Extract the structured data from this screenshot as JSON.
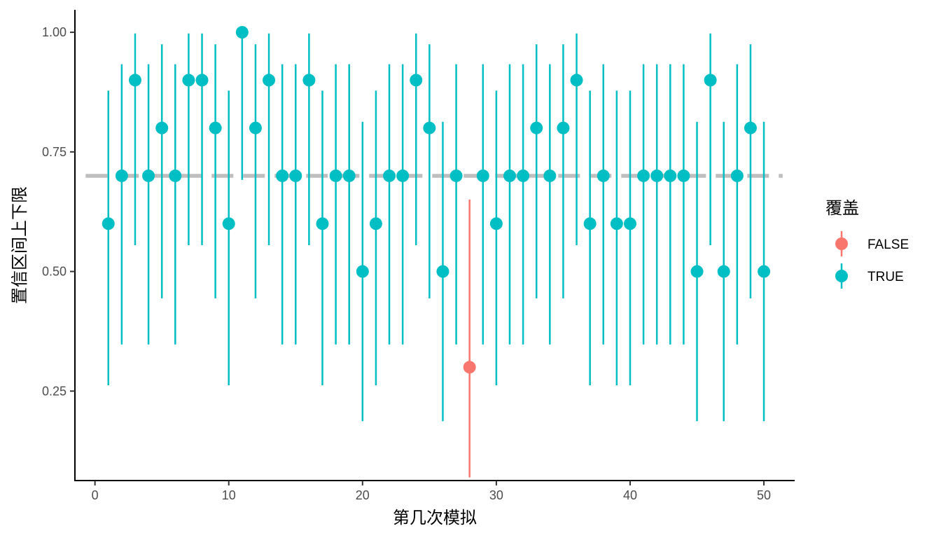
{
  "chart_data": {
    "type": "scatter",
    "subtype": "pointrange",
    "xlabel": "第几次模拟",
    "ylabel": "置信区间上下限",
    "xlim": [
      -1.5,
      52.3
    ],
    "ylim": [
      0.063,
      1.047
    ],
    "x_ticks": [
      0,
      10,
      20,
      30,
      40,
      50
    ],
    "y_ticks": [
      0.25,
      0.5,
      0.75,
      1.0
    ],
    "x_tick_labels": [
      "0",
      "10",
      "20",
      "30",
      "40",
      "50"
    ],
    "y_tick_labels": [
      "0.25",
      "0.50",
      "0.75",
      "1.00"
    ],
    "reference_line": {
      "y": 0.7,
      "style": "dashed",
      "color": "#BEBEBE"
    },
    "grid": false,
    "legend": {
      "title": "覆盖",
      "position": "right",
      "entries": [
        {
          "label": "FALSE",
          "color": "#F8766D"
        },
        {
          "label": "TRUE",
          "color": "#00BFC4"
        }
      ]
    },
    "series": [
      {
        "name": "FALSE",
        "color": "#F8766D",
        "points": [
          {
            "x": 28,
            "y": 0.3,
            "ymin": 0.0696,
            "ymax": 0.6503
          }
        ]
      },
      {
        "name": "TRUE",
        "color": "#00BFC4",
        "points": [
          {
            "x": 1,
            "y": 0.6,
            "ymin": 0.2622,
            "ymax": 0.8781
          },
          {
            "x": 2,
            "y": 0.7,
            "ymin": 0.3475,
            "ymax": 0.9333
          },
          {
            "x": 3,
            "y": 0.9,
            "ymin": 0.555,
            "ymax": 0.9975
          },
          {
            "x": 4,
            "y": 0.7,
            "ymin": 0.3475,
            "ymax": 0.9333
          },
          {
            "x": 5,
            "y": 0.8,
            "ymin": 0.4439,
            "ymax": 0.9748
          },
          {
            "x": 6,
            "y": 0.7,
            "ymin": 0.3475,
            "ymax": 0.9333
          },
          {
            "x": 7,
            "y": 0.9,
            "ymin": 0.555,
            "ymax": 0.9975
          },
          {
            "x": 8,
            "y": 0.9,
            "ymin": 0.555,
            "ymax": 0.9975
          },
          {
            "x": 9,
            "y": 0.8,
            "ymin": 0.4439,
            "ymax": 0.9748
          },
          {
            "x": 10,
            "y": 0.6,
            "ymin": 0.2622,
            "ymax": 0.8781
          },
          {
            "x": 11,
            "y": 1.0,
            "ymin": 0.6915,
            "ymax": 1.0
          },
          {
            "x": 12,
            "y": 0.8,
            "ymin": 0.4439,
            "ymax": 0.9748
          },
          {
            "x": 13,
            "y": 0.9,
            "ymin": 0.555,
            "ymax": 0.9975
          },
          {
            "x": 14,
            "y": 0.7,
            "ymin": 0.3475,
            "ymax": 0.9333
          },
          {
            "x": 15,
            "y": 0.7,
            "ymin": 0.3475,
            "ymax": 0.9333
          },
          {
            "x": 16,
            "y": 0.9,
            "ymin": 0.555,
            "ymax": 0.9975
          },
          {
            "x": 17,
            "y": 0.6,
            "ymin": 0.2622,
            "ymax": 0.8781
          },
          {
            "x": 18,
            "y": 0.7,
            "ymin": 0.3475,
            "ymax": 0.9333
          },
          {
            "x": 19,
            "y": 0.7,
            "ymin": 0.3475,
            "ymax": 0.9333
          },
          {
            "x": 20,
            "y": 0.5,
            "ymin": 0.1871,
            "ymax": 0.8129
          },
          {
            "x": 21,
            "y": 0.6,
            "ymin": 0.2622,
            "ymax": 0.8781
          },
          {
            "x": 22,
            "y": 0.7,
            "ymin": 0.3475,
            "ymax": 0.9333
          },
          {
            "x": 23,
            "y": 0.7,
            "ymin": 0.3475,
            "ymax": 0.9333
          },
          {
            "x": 24,
            "y": 0.9,
            "ymin": 0.555,
            "ymax": 0.9975
          },
          {
            "x": 25,
            "y": 0.8,
            "ymin": 0.4439,
            "ymax": 0.9748
          },
          {
            "x": 26,
            "y": 0.5,
            "ymin": 0.1871,
            "ymax": 0.8129
          },
          {
            "x": 27,
            "y": 0.7,
            "ymin": 0.3475,
            "ymax": 0.9333
          },
          {
            "x": 29,
            "y": 0.7,
            "ymin": 0.3475,
            "ymax": 0.9333
          },
          {
            "x": 30,
            "y": 0.6,
            "ymin": 0.2622,
            "ymax": 0.8781
          },
          {
            "x": 31,
            "y": 0.7,
            "ymin": 0.3475,
            "ymax": 0.9333
          },
          {
            "x": 32,
            "y": 0.7,
            "ymin": 0.3475,
            "ymax": 0.9333
          },
          {
            "x": 33,
            "y": 0.8,
            "ymin": 0.4439,
            "ymax": 0.9748
          },
          {
            "x": 34,
            "y": 0.7,
            "ymin": 0.3475,
            "ymax": 0.9333
          },
          {
            "x": 35,
            "y": 0.8,
            "ymin": 0.4439,
            "ymax": 0.9748
          },
          {
            "x": 36,
            "y": 0.9,
            "ymin": 0.555,
            "ymax": 0.9975
          },
          {
            "x": 37,
            "y": 0.6,
            "ymin": 0.2622,
            "ymax": 0.8781
          },
          {
            "x": 38,
            "y": 0.7,
            "ymin": 0.3475,
            "ymax": 0.9333
          },
          {
            "x": 39,
            "y": 0.6,
            "ymin": 0.2622,
            "ymax": 0.8781
          },
          {
            "x": 40,
            "y": 0.6,
            "ymin": 0.2622,
            "ymax": 0.8781
          },
          {
            "x": 41,
            "y": 0.7,
            "ymin": 0.3475,
            "ymax": 0.9333
          },
          {
            "x": 42,
            "y": 0.7,
            "ymin": 0.3475,
            "ymax": 0.9333
          },
          {
            "x": 43,
            "y": 0.7,
            "ymin": 0.3475,
            "ymax": 0.9333
          },
          {
            "x": 44,
            "y": 0.7,
            "ymin": 0.3475,
            "ymax": 0.9333
          },
          {
            "x": 45,
            "y": 0.5,
            "ymin": 0.1871,
            "ymax": 0.8129
          },
          {
            "x": 46,
            "y": 0.9,
            "ymin": 0.555,
            "ymax": 0.9975
          },
          {
            "x": 47,
            "y": 0.5,
            "ymin": 0.1871,
            "ymax": 0.8129
          },
          {
            "x": 48,
            "y": 0.7,
            "ymin": 0.3475,
            "ymax": 0.9333
          },
          {
            "x": 49,
            "y": 0.8,
            "ymin": 0.4439,
            "ymax": 0.9748
          },
          {
            "x": 50,
            "y": 0.5,
            "ymin": 0.1871,
            "ymax": 0.8129
          }
        ]
      }
    ]
  }
}
